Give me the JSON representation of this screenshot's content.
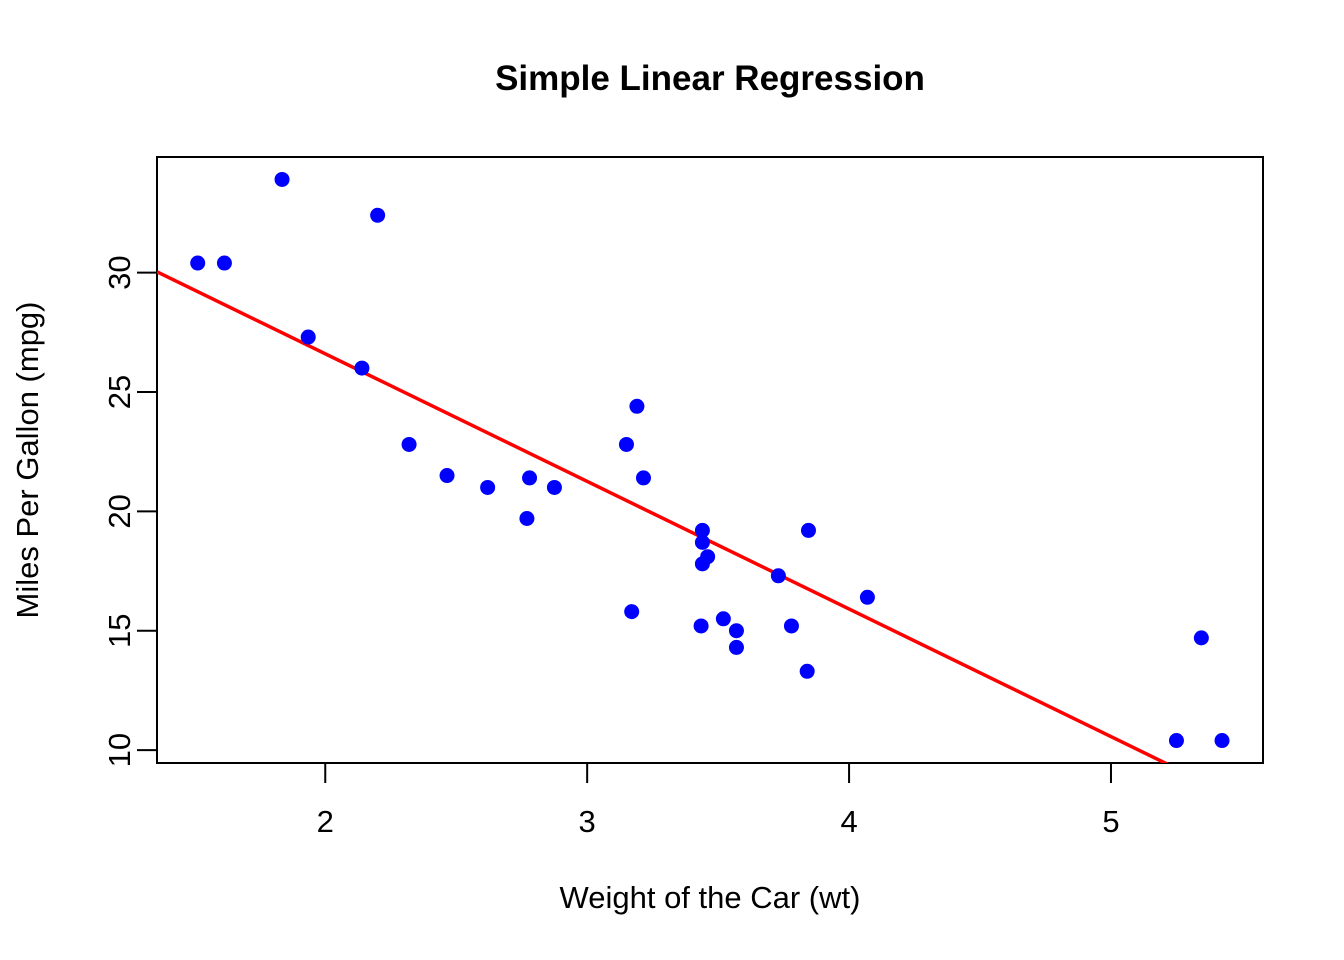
{
  "chart_data": {
    "type": "scatter",
    "title": "Simple Linear Regression",
    "xlabel": "Weight of the Car (wt)",
    "ylabel": "Miles Per Gallon (mpg)",
    "xlim": [
      1.35756,
      5.58044
    ],
    "ylim": [
      9.46,
      34.84
    ],
    "xticks": [
      2,
      3,
      4,
      5
    ],
    "yticks": [
      10,
      15,
      20,
      25,
      30
    ],
    "grid": false,
    "legend": "none",
    "point_color": "#0000FF",
    "line_color": "#FF0000",
    "axis_color": "#000000",
    "background_color": "#FFFFFF",
    "points": [
      {
        "x": 2.62,
        "y": 21.0
      },
      {
        "x": 2.875,
        "y": 21.0
      },
      {
        "x": 2.32,
        "y": 22.8
      },
      {
        "x": 3.215,
        "y": 21.4
      },
      {
        "x": 3.44,
        "y": 18.7
      },
      {
        "x": 3.46,
        "y": 18.1
      },
      {
        "x": 3.57,
        "y": 14.3
      },
      {
        "x": 3.19,
        "y": 24.4
      },
      {
        "x": 3.15,
        "y": 22.8
      },
      {
        "x": 3.44,
        "y": 19.2
      },
      {
        "x": 3.44,
        "y": 17.8
      },
      {
        "x": 4.07,
        "y": 16.4
      },
      {
        "x": 3.73,
        "y": 17.3
      },
      {
        "x": 3.78,
        "y": 15.2
      },
      {
        "x": 5.25,
        "y": 10.4
      },
      {
        "x": 5.424,
        "y": 10.4
      },
      {
        "x": 5.345,
        "y": 14.7
      },
      {
        "x": 2.2,
        "y": 32.4
      },
      {
        "x": 1.615,
        "y": 30.4
      },
      {
        "x": 1.835,
        "y": 33.9
      },
      {
        "x": 2.465,
        "y": 21.5
      },
      {
        "x": 3.52,
        "y": 15.5
      },
      {
        "x": 3.435,
        "y": 15.2
      },
      {
        "x": 3.84,
        "y": 13.3
      },
      {
        "x": 3.845,
        "y": 19.2
      },
      {
        "x": 1.935,
        "y": 27.3
      },
      {
        "x": 2.14,
        "y": 26.0
      },
      {
        "x": 1.513,
        "y": 30.4
      },
      {
        "x": 3.17,
        "y": 15.8
      },
      {
        "x": 2.77,
        "y": 19.7
      },
      {
        "x": 3.57,
        "y": 15.0
      },
      {
        "x": 2.78,
        "y": 21.4
      }
    ],
    "regression_line": {
      "slope": -5.344,
      "intercept": 37.285
    }
  }
}
